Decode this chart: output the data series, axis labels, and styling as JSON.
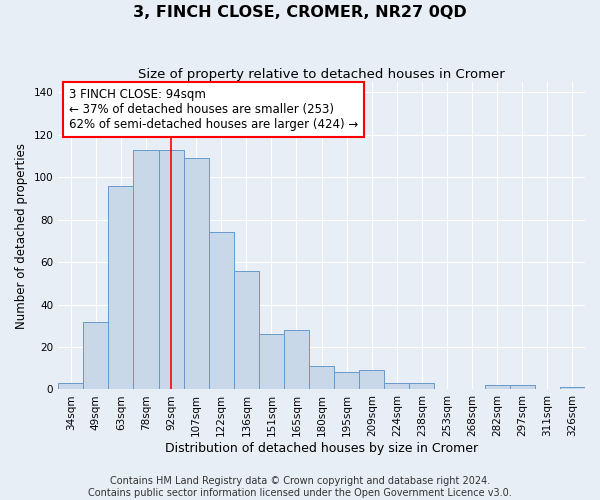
{
  "title": "3, FINCH CLOSE, CROMER, NR27 0QD",
  "subtitle": "Size of property relative to detached houses in Cromer",
  "xlabel": "Distribution of detached houses by size in Cromer",
  "ylabel": "Number of detached properties",
  "categories": [
    "34sqm",
    "49sqm",
    "63sqm",
    "78sqm",
    "92sqm",
    "107sqm",
    "122sqm",
    "136sqm",
    "151sqm",
    "165sqm",
    "180sqm",
    "195sqm",
    "209sqm",
    "224sqm",
    "238sqm",
    "253sqm",
    "268sqm",
    "282sqm",
    "297sqm",
    "311sqm",
    "326sqm"
  ],
  "values": [
    3,
    32,
    96,
    113,
    113,
    109,
    74,
    56,
    26,
    28,
    11,
    8,
    9,
    3,
    3,
    0,
    0,
    2,
    2,
    0,
    1
  ],
  "bar_color": "#c8d8e8",
  "bar_edge_color": "#6699cc",
  "bar_linewidth": 0.7,
  "vline_x_index": 4,
  "vline_color": "red",
  "vline_linewidth": 1.2,
  "annotation_text": "3 FINCH CLOSE: 94sqm\n← 37% of detached houses are smaller (253)\n62% of semi-detached houses are larger (424) →",
  "annotation_box_color": "white",
  "annotation_box_edge_color": "red",
  "ylim": [
    0,
    145
  ],
  "yticks": [
    0,
    20,
    40,
    60,
    80,
    100,
    120,
    140
  ],
  "background_color": "#e8eef5",
  "plot_bg_color": "#e8eef5",
  "footer_line1": "Contains HM Land Registry data © Crown copyright and database right 2024.",
  "footer_line2": "Contains public sector information licensed under the Open Government Licence v3.0.",
  "title_fontsize": 11.5,
  "subtitle_fontsize": 9.5,
  "xlabel_fontsize": 9,
  "ylabel_fontsize": 8.5,
  "tick_fontsize": 7.5,
  "annotation_fontsize": 8.5,
  "footer_fontsize": 7
}
